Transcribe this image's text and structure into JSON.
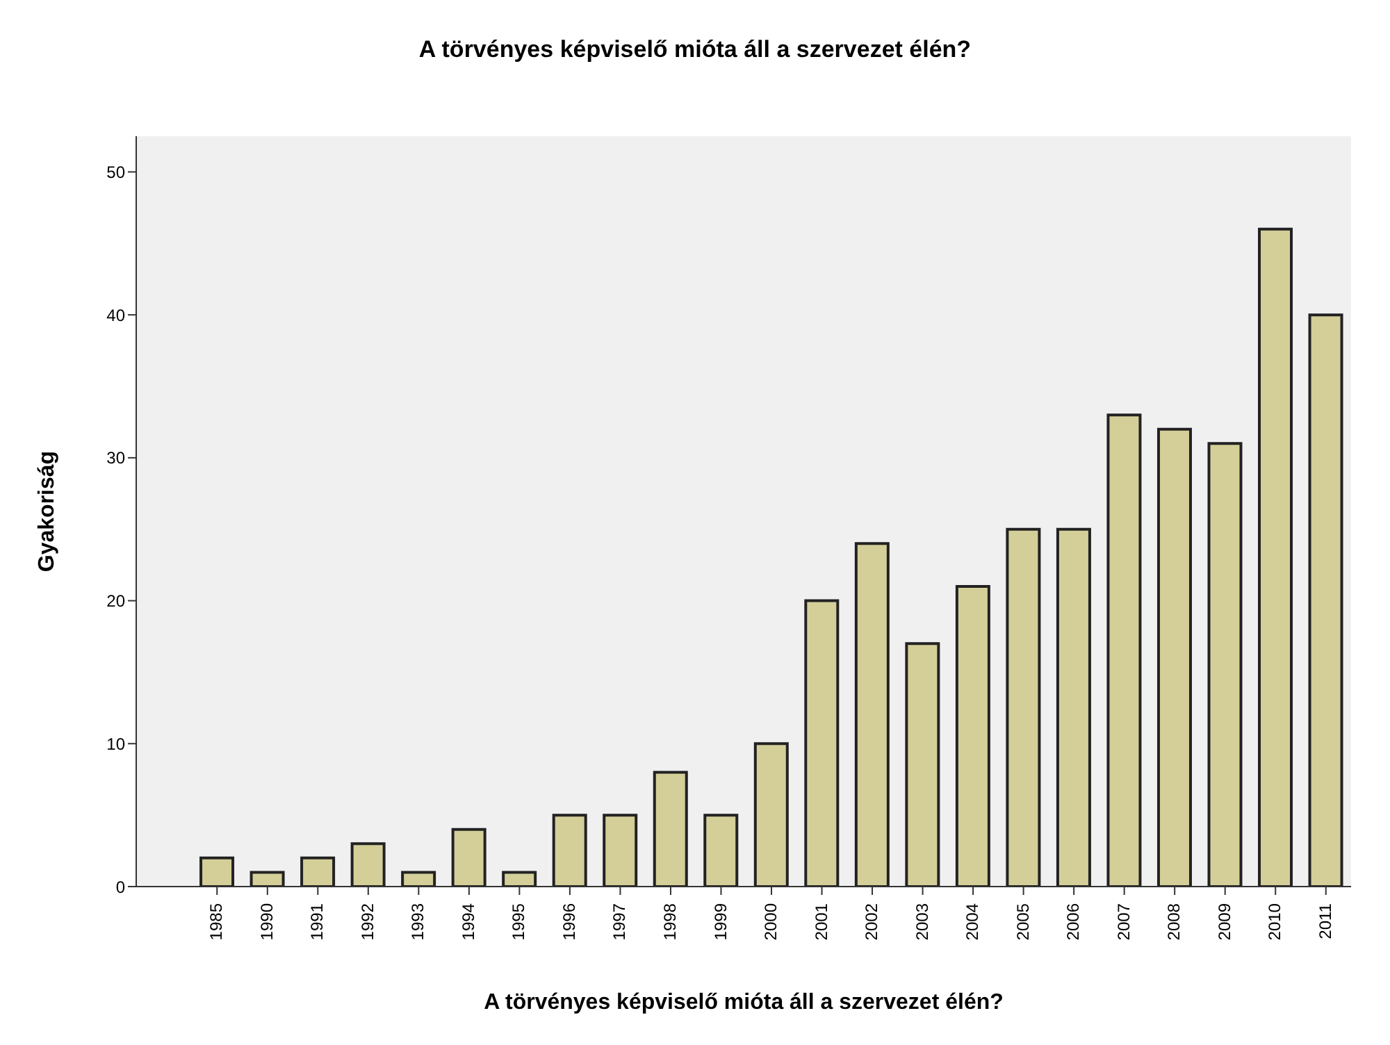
{
  "chart_data": {
    "type": "bar",
    "title": "A törvényes képviselő mióta áll a szervezet élén?",
    "xlabel": "A törvényes képviselő mióta áll a szervezet élén?",
    "ylabel": "Gyakoriság",
    "categories": [
      "1985",
      "1990",
      "1991",
      "1992",
      "1993",
      "1994",
      "1995",
      "1996",
      "1997",
      "1998",
      "1999",
      "2000",
      "2001",
      "2002",
      "2003",
      "2004",
      "2005",
      "2006",
      "2007",
      "2008",
      "2009",
      "2010",
      "2011"
    ],
    "values": [
      2,
      1,
      2,
      3,
      1,
      4,
      1,
      5,
      5,
      8,
      5,
      10,
      20,
      24,
      17,
      21,
      25,
      25,
      33,
      32,
      31,
      46,
      40
    ],
    "color": "#d4cf98",
    "ylim": [
      0,
      52.5
    ],
    "yticks": [
      0,
      10,
      20,
      30,
      40,
      50
    ],
    "grid": false
  }
}
